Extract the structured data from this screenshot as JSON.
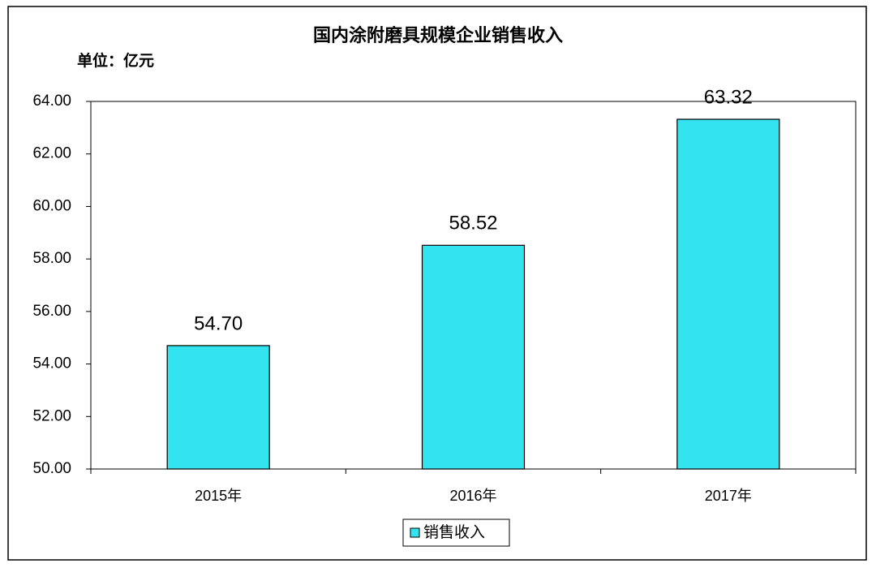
{
  "chart_data": {
    "type": "bar",
    "title": "国内涂附磨具规模企业销售收入",
    "subtitle": "单位：亿元",
    "categories": [
      "2015年",
      "2016年",
      "2017年"
    ],
    "series": [
      {
        "name": "销售收入",
        "color": "#33e3f0",
        "values": [
          54.7,
          58.52,
          63.32
        ],
        "value_labels": [
          "54.70",
          "58.52",
          "63.32"
        ]
      }
    ],
    "ylim": [
      50,
      64
    ],
    "yticks": [
      {
        "value": 50,
        "label": "50.00"
      },
      {
        "value": 52,
        "label": "52.00"
      },
      {
        "value": 54,
        "label": "54.00"
      },
      {
        "value": 56,
        "label": "56.00"
      },
      {
        "value": 58,
        "label": "58.00"
      },
      {
        "value": 60,
        "label": "60.00"
      },
      {
        "value": 62,
        "label": "62.00"
      },
      {
        "value": 64,
        "label": "64.00"
      }
    ],
    "grid": false
  }
}
